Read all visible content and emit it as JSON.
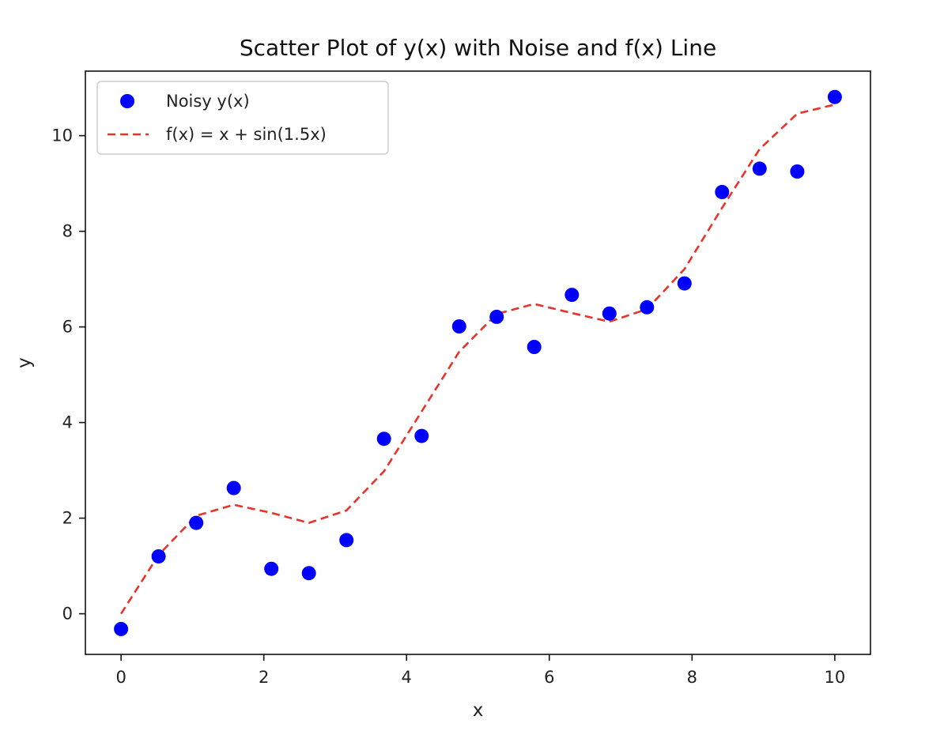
{
  "chart_data": {
    "type": "scatter",
    "title": "Scatter Plot of y(x) with Noise and f(x) Line",
    "xlabel": "x",
    "ylabel": "y",
    "xlim": [
      -0.5,
      10.5
    ],
    "ylim": [
      -0.85,
      11.35
    ],
    "xticks": [
      0,
      2,
      4,
      6,
      8,
      10
    ],
    "yticks": [
      0,
      2,
      4,
      6,
      8,
      10
    ],
    "xtick_labels": [
      "0",
      "2",
      "4",
      "6",
      "8",
      "10"
    ],
    "ytick_labels": [
      "0",
      "2",
      "4",
      "6",
      "8",
      "10"
    ],
    "grid": false,
    "legend_placement": "upper-left",
    "series": [
      {
        "name": "Noisy y(x)",
        "kind": "scatter",
        "color": "#0000ff",
        "x": [
          0.0,
          0.526,
          1.053,
          1.579,
          2.105,
          2.632,
          3.158,
          3.684,
          4.211,
          4.737,
          5.263,
          5.789,
          6.316,
          6.842,
          7.368,
          7.895,
          8.421,
          8.947,
          9.474,
          10.0
        ],
        "y": [
          -0.32,
          1.2,
          1.9,
          2.63,
          0.94,
          0.85,
          1.54,
          3.66,
          3.72,
          6.01,
          6.21,
          5.58,
          6.67,
          6.28,
          6.41,
          6.91,
          8.82,
          9.31,
          9.25,
          10.81
        ]
      },
      {
        "name": "f(x) = x + sin(1.5x)",
        "kind": "line",
        "style": "dashed",
        "color": "#e8332a",
        "x": [
          0.0,
          0.526,
          1.053,
          1.579,
          2.105,
          2.632,
          3.158,
          3.684,
          4.211,
          4.737,
          5.263,
          5.789,
          6.316,
          6.842,
          7.368,
          7.895,
          8.421,
          8.947,
          9.474,
          10.0
        ],
        "y": [
          0.0,
          1.23,
          2.05,
          2.28,
          2.11,
          1.9,
          2.16,
          2.98,
          4.23,
          5.48,
          6.27,
          6.48,
          6.29,
          6.11,
          6.37,
          7.21,
          8.49,
          9.72,
          10.46,
          10.65
        ]
      }
    ]
  }
}
